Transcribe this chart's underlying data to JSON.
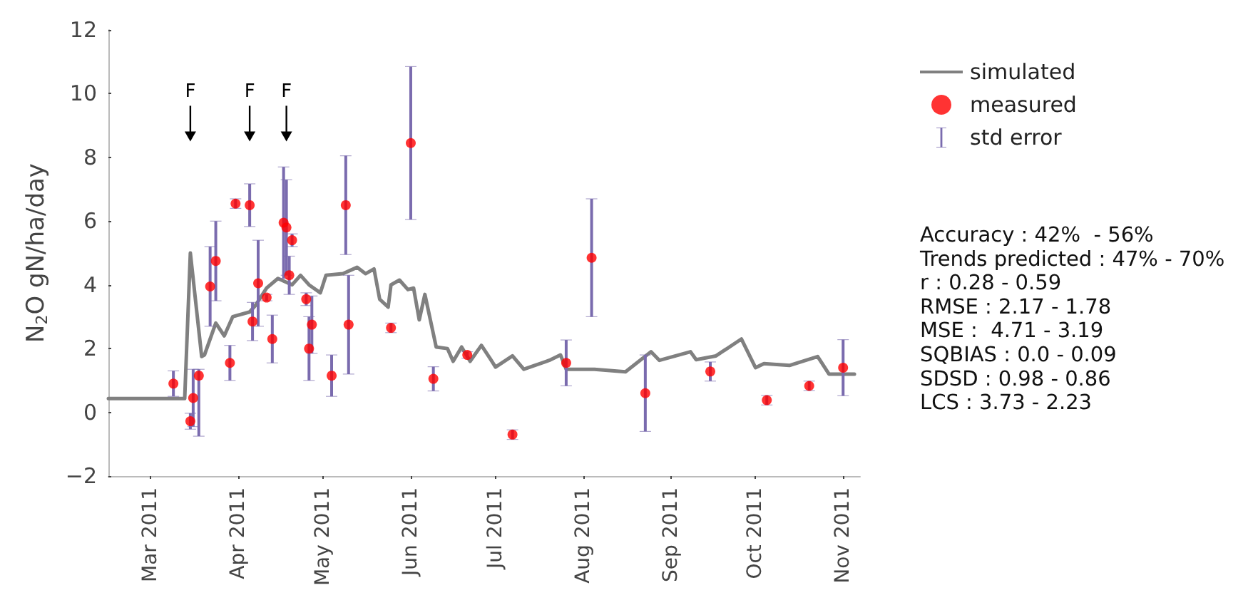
{
  "chart_data": {
    "type": "line",
    "ylabel": "N$_{2}$O gN/ha/day",
    "xlim": [
      "2011-02-14",
      "2011-11-07"
    ],
    "xticks": [
      {
        "value": "2011-03-01",
        "label": "Mar 2011"
      },
      {
        "value": "2011-04-01",
        "label": "Apr 2011"
      },
      {
        "value": "2011-05-01",
        "label": "May 2011"
      },
      {
        "value": "2011-06-01",
        "label": "Jun 2011"
      },
      {
        "value": "2011-07-01",
        "label": "Jul 2011"
      },
      {
        "value": "2011-08-01",
        "label": "Aug 2011"
      },
      {
        "value": "2011-09-01",
        "label": "Sep 2011"
      },
      {
        "value": "2011-10-01",
        "label": "Oct 2011"
      },
      {
        "value": "2011-11-01",
        "label": "Nov 2011"
      }
    ],
    "ylim": [
      -2,
      12
    ],
    "yticks": [
      {
        "value": -2,
        "label": "−2"
      },
      0,
      2,
      4,
      6,
      8,
      10,
      12
    ],
    "grid": false,
    "legend": "top right",
    "series": [
      {
        "name": "simulated",
        "color": "#808080",
        "marker": "none",
        "line_style": "solid",
        "x": [
          "2011-02-14",
          "2011-03-13",
          "2011-03-15",
          "2011-03-19",
          "2011-03-20",
          "2011-03-24",
          "2011-03-27",
          "2011-03-30",
          "2011-04-05",
          "2011-04-07",
          "2011-04-11",
          "2011-04-15",
          "2011-04-20",
          "2011-04-23",
          "2011-04-26",
          "2011-04-30",
          "2011-05-02",
          "2011-05-08",
          "2011-05-13",
          "2011-05-16",
          "2011-05-19",
          "2011-05-21",
          "2011-05-24",
          "2011-05-25",
          "2011-05-28",
          "2011-05-31",
          "2011-06-02",
          "2011-06-04",
          "2011-06-06",
          "2011-06-10",
          "2011-06-14",
          "2011-06-16",
          "2011-06-19",
          "2011-06-22",
          "2011-06-26",
          "2011-06-29",
          "2011-07-01",
          "2011-07-07",
          "2011-07-11",
          "2011-07-20",
          "2011-07-24",
          "2011-07-26",
          "2011-08-05",
          "2011-08-16",
          "2011-08-25",
          "2011-08-28",
          "2011-09-08",
          "2011-09-10",
          "2011-09-17",
          "2011-09-26",
          "2011-10-01",
          "2011-10-04",
          "2011-10-13",
          "2011-10-23",
          "2011-10-27",
          "2011-11-05"
        ],
        "values": [
          0.43,
          0.43,
          5.0,
          1.75,
          1.8,
          2.8,
          2.4,
          3.0,
          3.15,
          3.35,
          3.9,
          4.2,
          4.0,
          4.3,
          4.0,
          3.75,
          4.3,
          4.35,
          4.55,
          4.35,
          4.5,
          3.55,
          3.3,
          4.0,
          4.15,
          3.85,
          3.9,
          2.9,
          3.7,
          2.05,
          2.0,
          1.6,
          2.05,
          1.6,
          2.1,
          1.7,
          1.42,
          1.77,
          1.35,
          1.63,
          1.8,
          1.35,
          1.35,
          1.27,
          1.9,
          1.63,
          1.9,
          1.65,
          1.77,
          2.3,
          1.4,
          1.53,
          1.47,
          1.75,
          1.2,
          1.2
        ]
      },
      {
        "name": "measured",
        "type": "scatter",
        "color": "#ff0000",
        "marker": "circle",
        "x": [
          "2011-03-09",
          "2011-03-15",
          "2011-03-16",
          "2011-03-18",
          "2011-03-22",
          "2011-03-24",
          "2011-03-29",
          "2011-03-31",
          "2011-04-05",
          "2011-04-06",
          "2011-04-08",
          "2011-04-11",
          "2011-04-13",
          "2011-04-17",
          "2011-04-18",
          "2011-04-19",
          "2011-04-20",
          "2011-04-25",
          "2011-04-26",
          "2011-04-27",
          "2011-05-04",
          "2011-05-09",
          "2011-05-10",
          "2011-05-25",
          "2011-06-01",
          "2011-06-09",
          "2011-06-21",
          "2011-07-07",
          "2011-07-26",
          "2011-08-04",
          "2011-08-23",
          "2011-09-15",
          "2011-10-05",
          "2011-10-20",
          "2011-11-01"
        ],
        "values": [
          0.9,
          -0.28,
          0.45,
          1.15,
          3.95,
          4.75,
          1.55,
          6.55,
          6.5,
          2.85,
          4.05,
          3.6,
          2.3,
          5.95,
          5.8,
          4.3,
          5.4,
          3.55,
          2.0,
          2.75,
          1.15,
          6.5,
          2.75,
          2.65,
          8.45,
          1.05,
          1.8,
          -0.7,
          1.55,
          4.85,
          0.6,
          1.28,
          0.38,
          0.83,
          1.4
        ],
        "errors": [
          0.4,
          0.25,
          0.9,
          [
            -0.75,
            1.35
          ],
          1.25,
          1.25,
          0.55,
          0.15,
          0.67,
          0.6,
          1.35,
          0.1,
          0.75,
          1.75,
          1.5,
          0.6,
          0.2,
          0.2,
          1.0,
          0.9,
          0.65,
          1.55,
          1.55,
          0.15,
          2.4,
          0.38,
          0.1,
          0.15,
          0.72,
          1.85,
          1.2,
          0.3,
          0.15,
          0.15,
          0.88
        ]
      }
    ],
    "annotations": [
      "std error",
      {
        "text": "F",
        "x": "2011-03-15"
      },
      {
        "text": "F",
        "x": "2011-04-05"
      },
      {
        "text": "F",
        "x": "2011-04-18"
      },
      "Accuracy : 42%  - 56%",
      "Trends predicted : 47% - 70%",
      "r : 0.28 - 0.59",
      "RMSE : 2.17 - 1.78",
      "MSE :  4.71 - 3.19",
      "SQBIAS : 0.0 - 0.09",
      "SDSD : 0.98 - 0.86",
      "LCS : 3.73 - 2.23"
    ]
  }
}
